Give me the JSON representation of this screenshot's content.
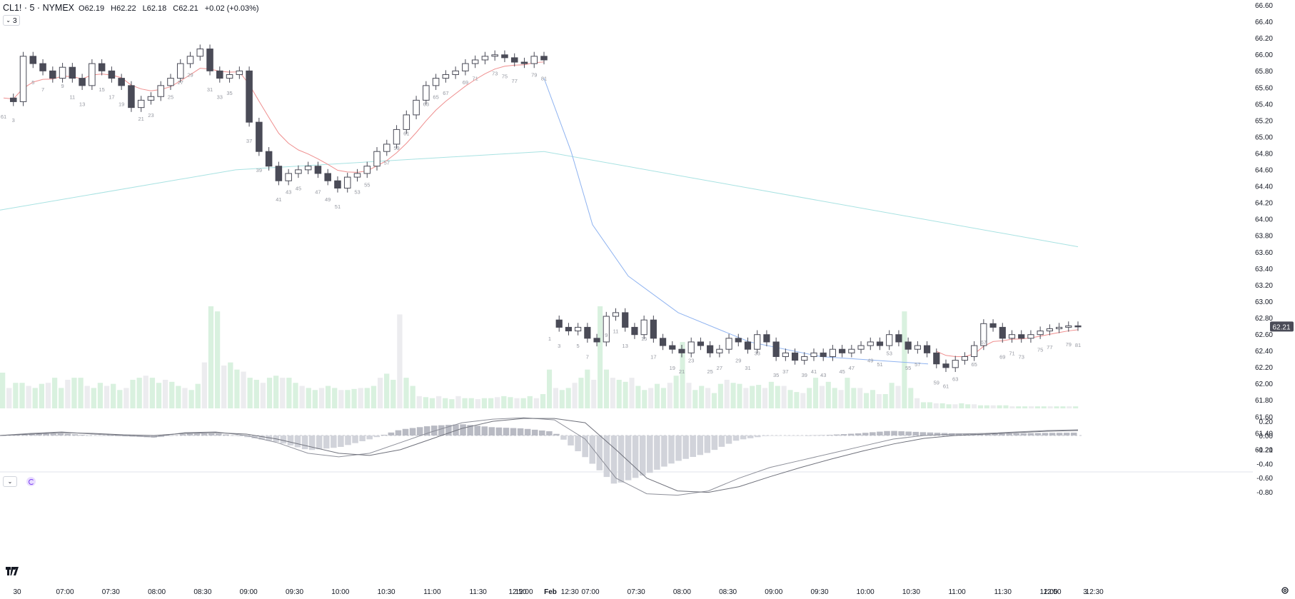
{
  "header": {
    "symbol": "CL1! · 5 · NYMEX",
    "o_label": "O",
    "o_value": "62.19",
    "h_label": "H",
    "h_value": "62.22",
    "l_label": "L",
    "l_value": "62.18",
    "c_label": "C",
    "c_value": "62.21",
    "change": "+0.02 (+0.03%)",
    "indicators_toggle": "3"
  },
  "colors": {
    "up_candle": "#ffffff",
    "down_candle": "#4a4b57",
    "outline": "#4a4b57",
    "ema_fast_above": "#ef8f8f",
    "ema_fast_below": "#8fb3f0",
    "ema_slow": "#a8e2e2",
    "volume_up": "#d9f1df",
    "volume_down": "#ececef",
    "macd_line": "#8d8f99",
    "price_badge_bg": "#4a4b57"
  },
  "chart_data": [
    {
      "type": "candlestick",
      "title": "CL1! · 5 · NYMEX",
      "session_1": {
        "x_labels": [
          "07:00",
          "07:30",
          "08:00",
          "08:30",
          "09:00",
          "09:30",
          "10:00",
          "10:30",
          "11:00",
          "11:30",
          "12:00",
          "12:30",
          "12:50"
        ],
        "close_path": [
          65.33,
          65.28,
          65.9,
          65.8,
          65.7,
          65.6,
          65.75,
          65.6,
          65.5,
          65.8,
          65.7,
          65.6,
          65.5,
          65.2,
          65.3,
          65.35,
          65.5,
          65.6,
          65.8,
          65.9,
          66.0,
          65.7,
          65.6,
          65.65,
          65.7,
          65.0,
          64.6,
          64.4,
          64.2,
          64.3,
          64.35,
          64.4,
          64.3,
          64.2,
          64.1,
          64.25,
          64.3,
          64.4,
          64.6,
          64.7,
          64.9,
          65.1,
          65.3,
          65.5,
          65.6,
          65.65,
          65.7,
          65.8,
          65.85,
          65.9,
          65.92,
          65.88,
          65.82,
          65.8,
          65.9,
          65.85
        ]
      },
      "session_2": {
        "x_labels": [
          "Feb",
          "07:00",
          "07:30",
          "08:00",
          "08:30",
          "09:00",
          "09:30",
          "10:00",
          "10:30",
          "11:00",
          "11:30",
          "12:00",
          "12:30",
          "12:50",
          "3"
        ],
        "close_path": [
          62.3,
          62.2,
          62.15,
          62.2,
          62.05,
          62.0,
          62.35,
          62.4,
          62.2,
          62.1,
          62.3,
          62.05,
          61.95,
          61.9,
          61.85,
          62.0,
          61.95,
          61.85,
          61.9,
          62.05,
          62.0,
          61.9,
          62.1,
          62.0,
          61.8,
          61.85,
          61.75,
          61.8,
          61.85,
          61.8,
          61.9,
          61.85,
          61.9,
          61.95,
          62.0,
          61.95,
          62.1,
          62.0,
          61.9,
          61.95,
          61.85,
          61.7,
          61.65,
          61.75,
          61.8,
          61.95,
          62.25,
          62.2,
          62.05,
          62.1,
          62.05,
          62.1,
          62.15,
          62.18,
          62.2,
          62.22,
          62.21
        ]
      },
      "last_price": "62.21",
      "y_axis_labels": [
        "66.60",
        "66.40",
        "66.20",
        "66.00",
        "65.80",
        "65.60",
        "65.40",
        "65.20",
        "65.00",
        "64.80",
        "64.60",
        "64.40",
        "64.20",
        "64.00",
        "63.80",
        "63.60",
        "63.40",
        "63.20",
        "63.00",
        "62.80",
        "62.60",
        "62.40",
        "62.20",
        "62.00",
        "61.80",
        "61.60",
        "61.40",
        "61.21"
      ],
      "ylim": [
        61.21,
        66.6
      ],
      "grid": false,
      "bar_number_labels_session_1": [
        "61",
        "3",
        "5",
        "7",
        "9",
        "11",
        "13",
        "15",
        "17",
        "19",
        "21",
        "23",
        "25",
        "27",
        "29",
        "31",
        "33",
        "35",
        "37",
        "39",
        "41",
        "43",
        "45",
        "47",
        "49",
        "51",
        "53",
        "55",
        "57",
        "59",
        "61",
        "63",
        "65",
        "67",
        "69",
        "71",
        "73",
        "75",
        "77",
        "79",
        "81"
      ],
      "bar_number_labels_session_2": [
        "1",
        "3",
        "5",
        "7",
        "9",
        "11",
        "13",
        "15",
        "17",
        "19",
        "21",
        "23",
        "25",
        "27",
        "29",
        "31",
        "33",
        "35",
        "37",
        "39",
        "41",
        "43",
        "45",
        "47",
        "49",
        "51",
        "53",
        "55",
        "57",
        "59",
        "61",
        "63",
        "65",
        "67",
        "69",
        "71",
        "73",
        "75",
        "77",
        "79",
        "81"
      ]
    },
    {
      "type": "line",
      "name_hidden": true,
      "series": [
        {
          "values_fast": "ema following price"
        },
        {
          "values_slow": "long ema"
        }
      ],
      "ema_slow_path": [
        63.8,
        64.35,
        64.6,
        63.3
      ]
    },
    {
      "type": "bar",
      "series": [
        {
          "values": "volume"
        }
      ],
      "volume_levels": [
        0.35,
        0.2,
        0.25,
        0.25,
        0.22,
        0.2,
        0.24,
        0.25,
        0.3,
        0.2,
        0.28,
        0.3,
        0.3,
        0.22,
        0.2,
        0.25,
        0.22,
        0.24,
        0.18,
        0.2,
        0.28,
        0.3,
        0.32,
        0.3,
        0.25,
        0.28,
        0.26,
        0.22,
        0.2,
        0.18,
        0.24,
        0.45,
        1.0,
        0.95,
        0.42,
        0.45,
        0.38,
        0.36,
        0.3,
        0.28,
        0.25,
        0.3,
        0.32,
        0.3,
        0.3,
        0.25,
        0.22,
        0.2,
        0.18,
        0.2,
        0.22,
        0.2,
        0.18,
        0.18,
        0.19,
        0.2,
        0.2,
        0.22,
        0.3,
        0.34,
        0.28,
        0.92,
        0.3,
        0.22,
        0.12,
        0.11,
        0.1,
        0.12,
        0.1,
        0.09,
        0.12,
        0.1,
        0.1,
        0.09,
        0.1,
        0.1,
        0.11,
        0.12,
        0.11,
        0.1,
        0.1,
        0.12,
        0.1,
        0.14
      ],
      "volume_levels_s2": [
        0.38,
        0.2,
        0.18,
        0.2,
        0.25,
        0.3,
        0.38,
        0.28,
        1.0,
        0.38,
        0.3,
        0.28,
        0.26,
        0.3,
        0.22,
        0.18,
        0.2,
        0.24,
        0.2,
        0.25,
        0.32,
        0.65,
        0.25,
        0.18,
        0.22,
        0.2,
        0.15,
        0.24,
        0.28,
        0.25,
        0.24,
        0.2,
        0.22,
        0.23,
        0.2,
        0.26,
        0.22,
        0.22,
        0.18,
        0.16,
        0.15,
        0.2,
        0.3,
        0.22,
        0.26,
        0.2,
        0.18,
        0.3,
        0.2,
        0.2,
        0.15,
        0.18,
        0.14,
        0.14,
        0.25,
        0.22,
        0.95,
        0.2,
        0.1,
        0.06,
        0.06,
        0.05,
        0.05,
        0.04,
        0.04,
        0.05,
        0.04,
        0.04,
        0.03,
        0.03,
        0.03,
        0.03,
        0.03,
        0.02,
        0.02,
        0.02,
        0.02,
        0.02,
        0.02,
        0.02,
        0.02,
        0.02,
        0.02,
        0.02
      ]
    },
    {
      "type": "bar",
      "title": "MACD",
      "y_axis_labels": [
        "0.20",
        "0.00",
        "-0.20",
        "-0.40",
        "-0.60",
        "-0.80"
      ],
      "ylim": [
        -0.9,
        0.3
      ],
      "macd_path": [
        0.0,
        0.03,
        0.05,
        0.02,
        0.0,
        -0.02,
        0.04,
        0.05,
        0.0,
        -0.1,
        -0.25,
        -0.3,
        -0.25,
        -0.1,
        0.05,
        0.18,
        0.23,
        0.25,
        0.22,
        -0.05,
        -0.6,
        -0.82,
        -0.84,
        -0.78,
        -0.6,
        -0.45,
        -0.35,
        -0.25,
        -0.15,
        -0.05,
        0.0,
        0.02,
        0.03,
        0.05,
        0.07,
        0.08
      ],
      "signal_path": [
        0.0,
        0.02,
        0.04,
        0.03,
        0.01,
        0.0,
        0.03,
        0.04,
        0.02,
        -0.05,
        -0.15,
        -0.25,
        -0.28,
        -0.2,
        -0.05,
        0.1,
        0.2,
        0.24,
        0.24,
        0.18,
        -0.2,
        -0.6,
        -0.78,
        -0.8,
        -0.72,
        -0.58,
        -0.45,
        -0.33,
        -0.22,
        -0.12,
        -0.04,
        0.0,
        0.02,
        0.04,
        0.06,
        0.07
      ]
    }
  ]
}
